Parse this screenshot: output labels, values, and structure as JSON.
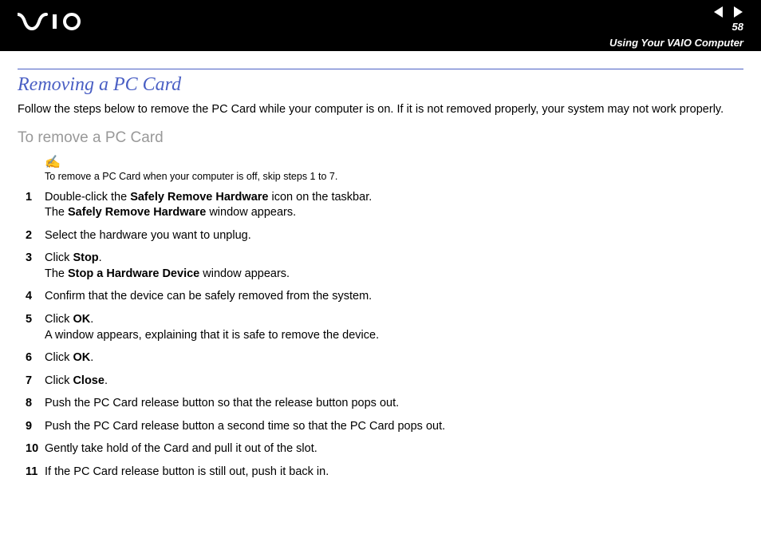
{
  "header": {
    "page_number": "58",
    "section_label": "Using Your VAIO Computer"
  },
  "colors": {
    "header_bg": "#000000",
    "header_fg": "#ffffff",
    "title_color": "#4a5fc4",
    "rule_color": "#4a5fc4",
    "subtitle_color": "#999999",
    "body_color": "#000000",
    "page_bg": "#ffffff"
  },
  "typography": {
    "title_fontsize": 24,
    "title_style": "italic",
    "subtitle_fontsize": 19,
    "body_fontsize": 14.5,
    "note_fontsize": 12.5,
    "step_number_weight": "bold"
  },
  "title": "Removing a PC Card",
  "intro": "Follow the steps below to remove the PC Card while your computer is on. If it is not removed properly, your system may not work properly.",
  "subtitle": "To remove a PC Card",
  "note": {
    "icon": "✍",
    "text": "To remove a PC Card when your computer is off, skip steps 1 to 7."
  },
  "steps": [
    {
      "n": "1",
      "html": "Double-click the <b>Safely Remove Hardware</b> icon on the taskbar.<br>The <b>Safely Remove Hardware</b> window appears."
    },
    {
      "n": "2",
      "html": "Select the hardware you want to unplug."
    },
    {
      "n": "3",
      "html": "Click <b>Stop</b>.<br>The <b>Stop a Hardware Device</b> window appears."
    },
    {
      "n": "4",
      "html": "Confirm that the device can be safely removed from the system."
    },
    {
      "n": "5",
      "html": "Click <b>OK</b>.<br>A window appears, explaining that it is safe to remove the device."
    },
    {
      "n": "6",
      "html": "Click <b>OK</b>."
    },
    {
      "n": "7",
      "html": "Click <b>Close</b>."
    },
    {
      "n": "8",
      "html": "Push the PC Card release button so that the release button pops out."
    },
    {
      "n": "9",
      "html": "Push the PC Card release button a second time so that the PC Card pops out."
    },
    {
      "n": "10",
      "html": "Gently take hold of the Card and pull it out of the slot."
    },
    {
      "n": "11",
      "html": "If the PC Card release button is still out, push it back in."
    }
  ]
}
